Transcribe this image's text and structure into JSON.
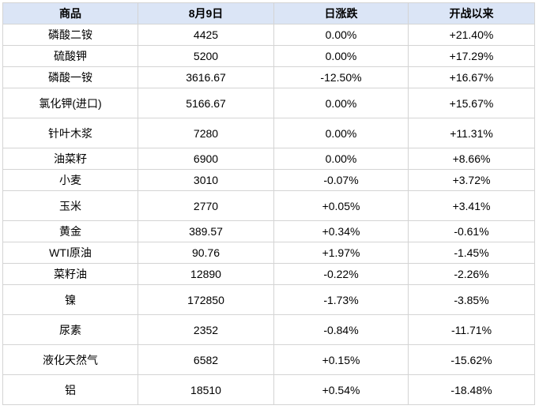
{
  "chart_data": {
    "type": "table",
    "title": "",
    "columns": [
      "商品",
      "8月9日",
      "日涨跌",
      "开战以来"
    ],
    "rows": [
      {
        "name": "磷酸二铵",
        "price": "4425",
        "daily_change": "0.00%",
        "daily_trend": "flat",
        "since_start": "+21.40%",
        "since_trend": "up"
      },
      {
        "name": "硫酸钾",
        "price": "5200",
        "daily_change": "0.00%",
        "daily_trend": "flat",
        "since_start": "+17.29%",
        "since_trend": "up"
      },
      {
        "name": "磷酸一铵",
        "price": "3616.67",
        "daily_change": "-12.50%",
        "daily_trend": "down",
        "since_start": "+16.67%",
        "since_trend": "up"
      },
      {
        "name": "氯化钾(进口)",
        "price": "5166.67",
        "daily_change": "0.00%",
        "daily_trend": "flat",
        "since_start": "+15.67%",
        "since_trend": "up"
      },
      {
        "name": "针叶木浆",
        "price": "7280",
        "daily_change": "0.00%",
        "daily_trend": "flat",
        "since_start": "+11.31%",
        "since_trend": "up"
      },
      {
        "name": "油菜籽",
        "price": "6900",
        "daily_change": "0.00%",
        "daily_trend": "flat",
        "since_start": "+8.66%",
        "since_trend": "up"
      },
      {
        "name": "小麦",
        "price": "3010",
        "daily_change": "-0.07%",
        "daily_trend": "down",
        "since_start": "+3.72%",
        "since_trend": "up"
      },
      {
        "name": "玉米",
        "price": "2770",
        "daily_change": "+0.05%",
        "daily_trend": "up",
        "since_start": "+3.41%",
        "since_trend": "up"
      },
      {
        "name": "黄金",
        "price": "389.57",
        "daily_change": "+0.34%",
        "daily_trend": "up",
        "since_start": "-0.61%",
        "since_trend": "down"
      },
      {
        "name": "WTI原油",
        "price": "90.76",
        "daily_change": "+1.97%",
        "daily_trend": "up",
        "since_start": "-1.45%",
        "since_trend": "down"
      },
      {
        "name": "菜籽油",
        "price": "12890",
        "daily_change": "-0.22%",
        "daily_trend": "down",
        "since_start": "-2.26%",
        "since_trend": "down"
      },
      {
        "name": "镍",
        "price": "172850",
        "daily_change": "-1.73%",
        "daily_trend": "down",
        "since_start": "-3.85%",
        "since_trend": "down"
      },
      {
        "name": "尿素",
        "price": "2352",
        "daily_change": "-0.84%",
        "daily_trend": "down",
        "since_start": "-11.71%",
        "since_trend": "down"
      },
      {
        "name": "液化天然气",
        "price": "6582",
        "daily_change": "+0.15%",
        "daily_trend": "up",
        "since_start": "-15.62%",
        "since_trend": "down"
      },
      {
        "name": "铝",
        "price": "18510",
        "daily_change": "+0.54%",
        "daily_trend": "up",
        "since_start": "-18.48%",
        "since_trend": "down"
      }
    ],
    "colors": {
      "up_red": "#f8293d",
      "down_green": "#0e8c46",
      "neutral_text": "#000000",
      "header_background": "#dbe5f6",
      "grid_border": "#d4d4d4"
    },
    "layout_hints": {
      "grid": "on",
      "value_alignment": "center"
    }
  }
}
